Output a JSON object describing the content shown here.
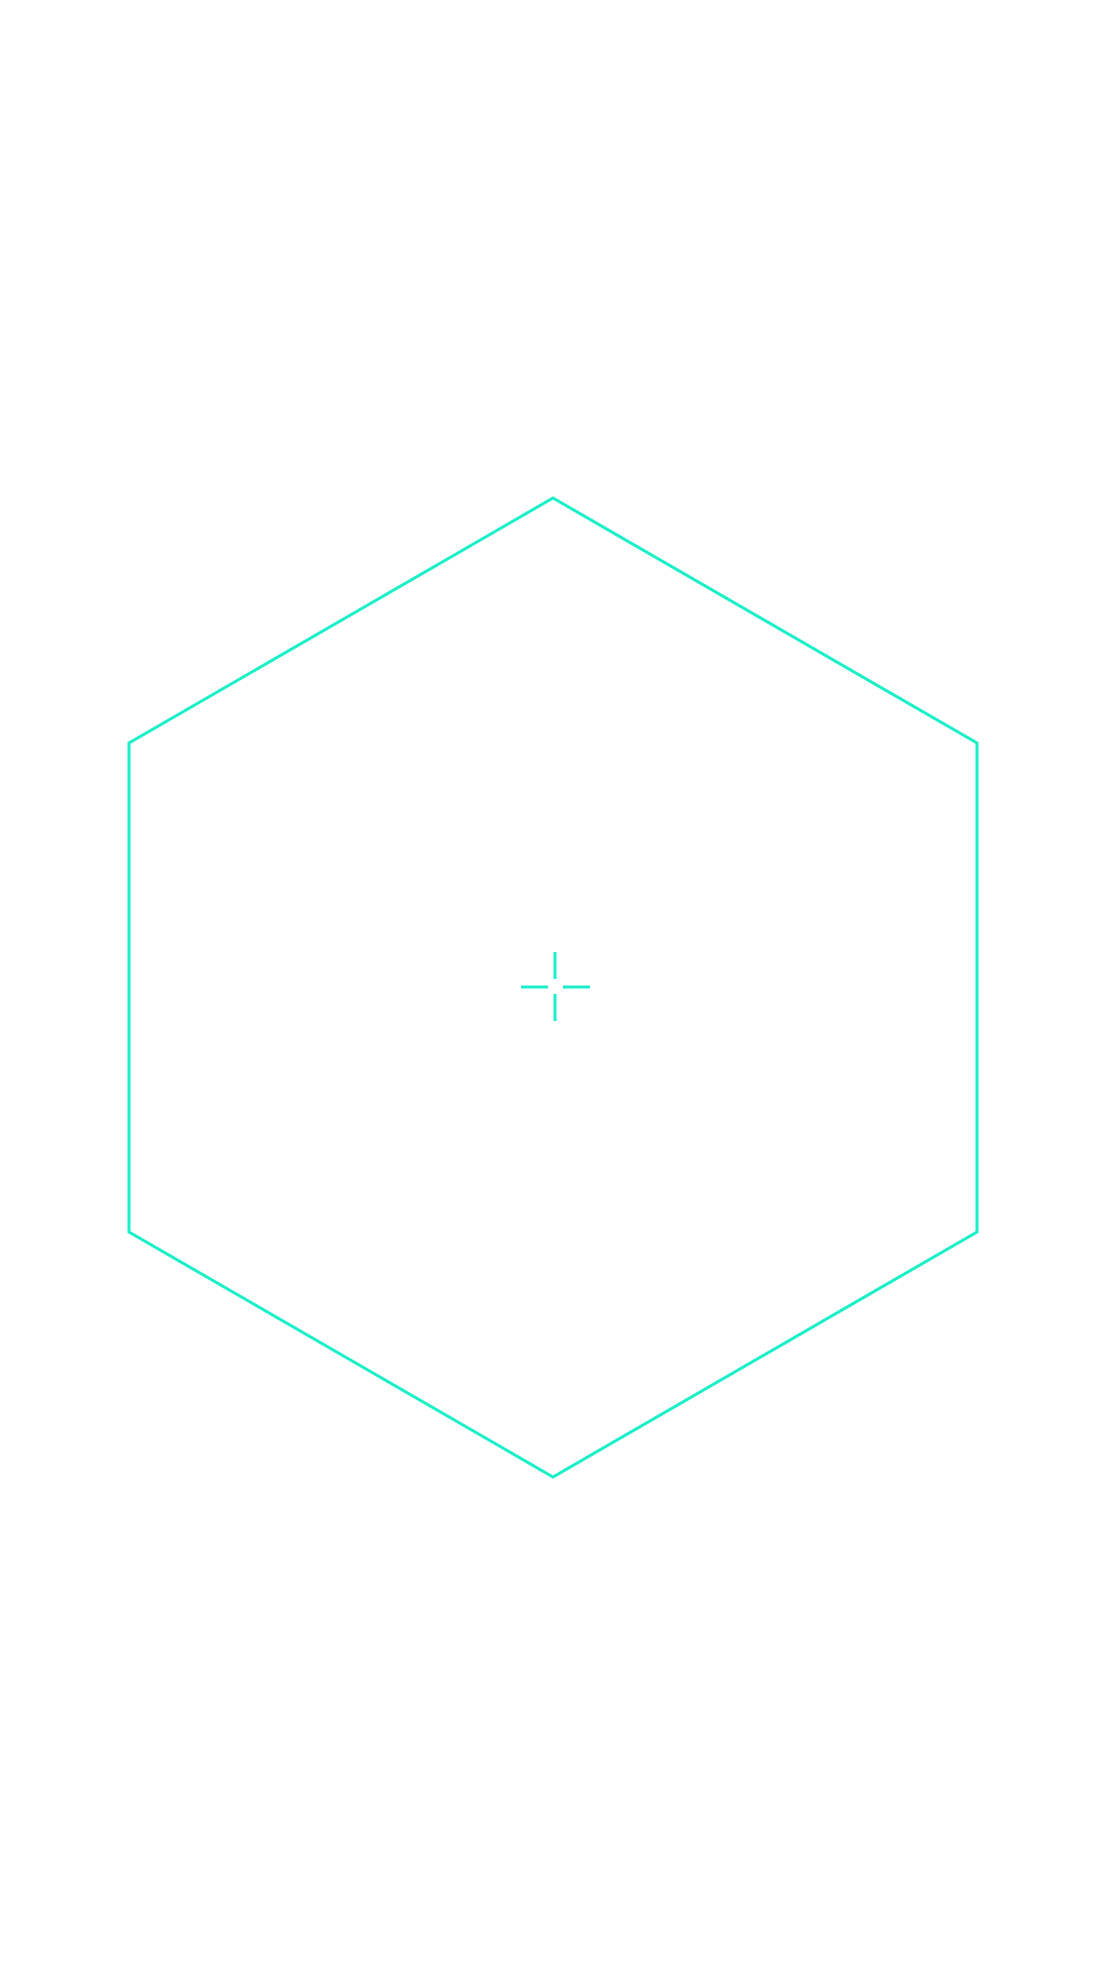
{
  "colors": {
    "background": "#ffffff",
    "accent": "#19efc8"
  },
  "overlay": {
    "shape": "hexagon-outline",
    "marker": "crosshair-icon"
  }
}
